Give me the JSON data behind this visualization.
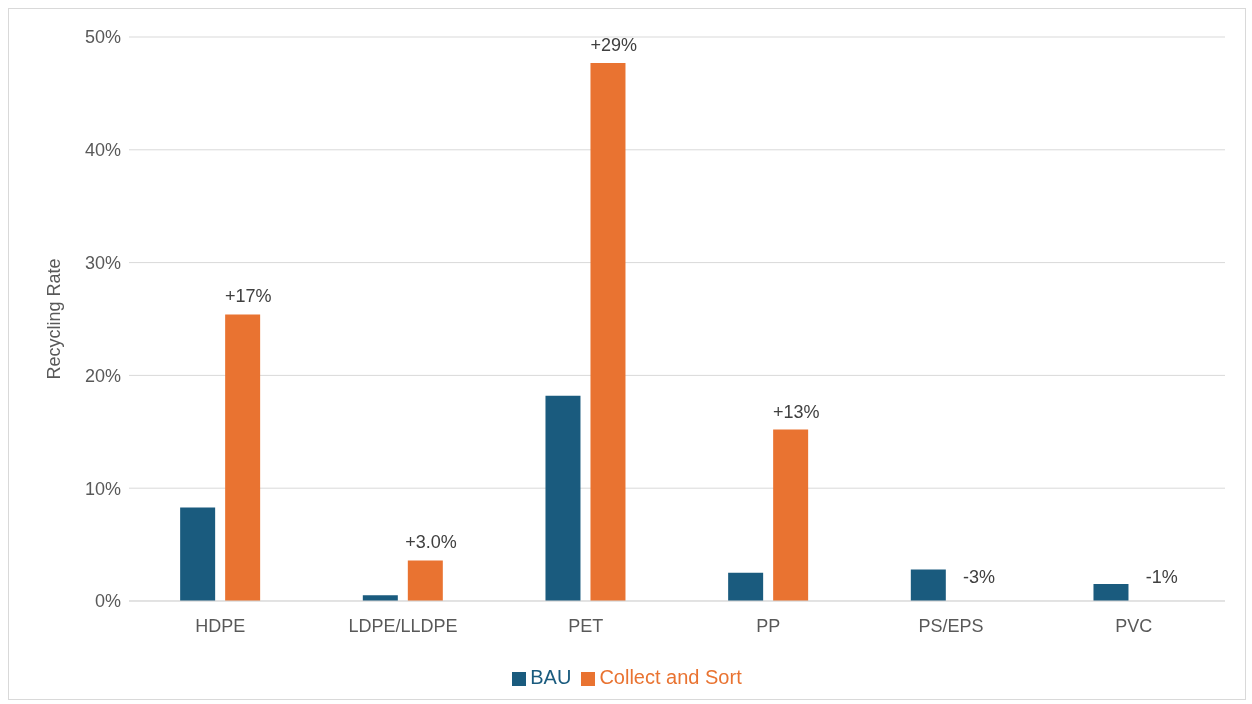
{
  "chart_data": {
    "type": "bar",
    "ylabel": "Recycling Rate",
    "categories": [
      "HDPE",
      "LDPE/LLDPE",
      "PET",
      "PP",
      "PS/EPS",
      "PVC"
    ],
    "series": [
      {
        "name": "BAU",
        "color": "#1a5b7e",
        "values": [
          8.3,
          0.5,
          18.2,
          2.5,
          2.8,
          1.5
        ]
      },
      {
        "name": "Collect and Sort",
        "color": "#e97331",
        "values": [
          25.4,
          3.6,
          47.7,
          15.2,
          0,
          0
        ]
      }
    ],
    "annotations": [
      {
        "text": "+17%",
        "x": "HDPE",
        "y": 25.4
      },
      {
        "text": "+3.0%",
        "x": "LDPE/LLDPE",
        "y": 3.6
      },
      {
        "text": "+29%",
        "x": "PET",
        "y": 47.7
      },
      {
        "text": "+13%",
        "x": "PP",
        "y": 15.2
      },
      {
        "text": "-3%",
        "x": "PS/EPS",
        "y": 0
      },
      {
        "text": "-1%",
        "x": "PVC",
        "y": 0
      }
    ],
    "ylim": [
      0,
      50
    ],
    "yticks": [
      {
        "value": 0,
        "label": "0%"
      },
      {
        "value": 10,
        "label": "10%"
      },
      {
        "value": 20,
        "label": "20%"
      },
      {
        "value": 30,
        "label": "30%"
      },
      {
        "value": 40,
        "label": "40%"
      },
      {
        "value": 50,
        "label": "50%"
      }
    ],
    "grid": "y",
    "legend": "bottom"
  }
}
